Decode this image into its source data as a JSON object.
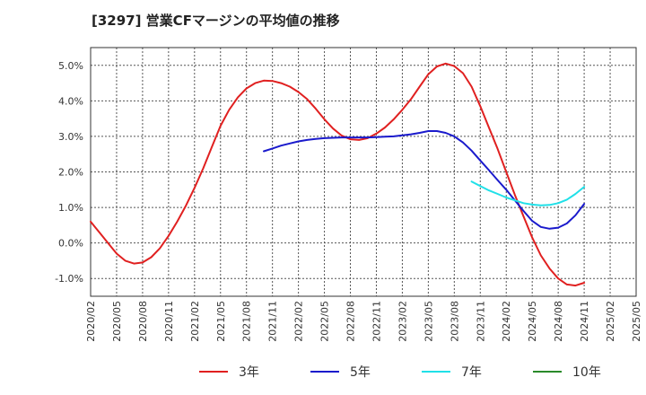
{
  "chart_data": {
    "type": "line",
    "title": "[3297]  営業CFマージンの平均値の推移",
    "xlabel": "",
    "ylabel": "",
    "ylim": [
      -1.5,
      5.5
    ],
    "y_ticks": [
      "5.0%",
      "4.0%",
      "3.0%",
      "2.0%",
      "1.0%",
      "0.0%",
      "-1.0%"
    ],
    "x_ticks": [
      "2020/02",
      "2020/05",
      "2020/08",
      "2020/11",
      "2021/02",
      "2021/05",
      "2021/08",
      "2021/11",
      "2022/02",
      "2022/05",
      "2022/08",
      "2022/11",
      "2023/02",
      "2023/05",
      "2023/08",
      "2023/11",
      "2024/02",
      "2024/05",
      "2024/08",
      "2024/11",
      "2025/02",
      "2025/05"
    ],
    "grid": true,
    "legend_position": "bottom",
    "series": [
      {
        "name": "3年",
        "color": "#e02020",
        "points": [
          [
            "2020/02",
            0.6
          ],
          [
            "2020/03",
            0.3
          ],
          [
            "2020/04",
            0.0
          ],
          [
            "2020/05",
            -0.3
          ],
          [
            "2020/06",
            -0.5
          ],
          [
            "2020/07",
            -0.58
          ],
          [
            "2020/08",
            -0.55
          ],
          [
            "2020/09",
            -0.4
          ],
          [
            "2020/10",
            -0.15
          ],
          [
            "2020/11",
            0.2
          ],
          [
            "2020/12",
            0.6
          ],
          [
            "2021/01",
            1.05
          ],
          [
            "2021/02",
            1.55
          ],
          [
            "2021/03",
            2.1
          ],
          [
            "2021/04",
            2.7
          ],
          [
            "2021/05",
            3.3
          ],
          [
            "2021/06",
            3.75
          ],
          [
            "2021/07",
            4.1
          ],
          [
            "2021/08",
            4.35
          ],
          [
            "2021/09",
            4.5
          ],
          [
            "2021/10",
            4.57
          ],
          [
            "2021/11",
            4.56
          ],
          [
            "2021/12",
            4.5
          ],
          [
            "2022/01",
            4.4
          ],
          [
            "2022/02",
            4.25
          ],
          [
            "2022/03",
            4.05
          ],
          [
            "2022/04",
            3.78
          ],
          [
            "2022/05",
            3.48
          ],
          [
            "2022/06",
            3.22
          ],
          [
            "2022/07",
            3.02
          ],
          [
            "2022/08",
            2.92
          ],
          [
            "2022/09",
            2.9
          ],
          [
            "2022/10",
            2.95
          ],
          [
            "2022/11",
            3.08
          ],
          [
            "2022/12",
            3.25
          ],
          [
            "2023/01",
            3.48
          ],
          [
            "2023/02",
            3.75
          ],
          [
            "2023/03",
            4.05
          ],
          [
            "2023/04",
            4.4
          ],
          [
            "2023/05",
            4.75
          ],
          [
            "2023/06",
            4.97
          ],
          [
            "2023/07",
            5.05
          ],
          [
            "2023/08",
            4.98
          ],
          [
            "2023/09",
            4.78
          ],
          [
            "2023/10",
            4.4
          ],
          [
            "2023/11",
            3.85
          ],
          [
            "2023/12",
            3.25
          ],
          [
            "2024/01",
            2.65
          ],
          [
            "2024/02",
            2.0
          ],
          [
            "2024/03",
            1.35
          ],
          [
            "2024/04",
            0.75
          ],
          [
            "2024/05",
            0.15
          ],
          [
            "2024/06",
            -0.35
          ],
          [
            "2024/07",
            -0.72
          ],
          [
            "2024/08",
            -1.0
          ],
          [
            "2024/09",
            -1.17
          ],
          [
            "2024/10",
            -1.2
          ],
          [
            "2024/11",
            -1.12
          ]
        ]
      },
      {
        "name": "5年",
        "color": "#1a1acc",
        "points": [
          [
            "2021/10",
            2.58
          ],
          [
            "2021/11",
            2.66
          ],
          [
            "2021/12",
            2.74
          ],
          [
            "2022/01",
            2.8
          ],
          [
            "2022/02",
            2.86
          ],
          [
            "2022/03",
            2.9
          ],
          [
            "2022/04",
            2.93
          ],
          [
            "2022/05",
            2.95
          ],
          [
            "2022/06",
            2.96
          ],
          [
            "2022/07",
            2.97
          ],
          [
            "2022/08",
            2.97
          ],
          [
            "2022/09",
            2.97
          ],
          [
            "2022/10",
            2.97
          ],
          [
            "2022/11",
            2.98
          ],
          [
            "2022/12",
            2.99
          ],
          [
            "2023/01",
            3.0
          ],
          [
            "2023/02",
            3.03
          ],
          [
            "2023/03",
            3.06
          ],
          [
            "2023/04",
            3.1
          ],
          [
            "2023/05",
            3.15
          ],
          [
            "2023/06",
            3.15
          ],
          [
            "2023/07",
            3.1
          ],
          [
            "2023/08",
            3.0
          ],
          [
            "2023/09",
            2.83
          ],
          [
            "2023/10",
            2.6
          ],
          [
            "2023/11",
            2.32
          ],
          [
            "2023/12",
            2.05
          ],
          [
            "2024/01",
            1.77
          ],
          [
            "2024/02",
            1.5
          ],
          [
            "2024/03",
            1.2
          ],
          [
            "2024/04",
            0.9
          ],
          [
            "2024/05",
            0.62
          ],
          [
            "2024/06",
            0.45
          ],
          [
            "2024/07",
            0.4
          ],
          [
            "2024/08",
            0.43
          ],
          [
            "2024/09",
            0.55
          ],
          [
            "2024/10",
            0.78
          ],
          [
            "2024/11",
            1.1
          ]
        ]
      },
      {
        "name": "7年",
        "color": "#20e0e8",
        "points": [
          [
            "2023/10",
            1.73
          ],
          [
            "2023/11",
            1.6
          ],
          [
            "2023/12",
            1.48
          ],
          [
            "2024/01",
            1.38
          ],
          [
            "2024/02",
            1.28
          ],
          [
            "2024/03",
            1.2
          ],
          [
            "2024/04",
            1.12
          ],
          [
            "2024/05",
            1.08
          ],
          [
            "2024/06",
            1.06
          ],
          [
            "2024/07",
            1.07
          ],
          [
            "2024/08",
            1.12
          ],
          [
            "2024/09",
            1.22
          ],
          [
            "2024/10",
            1.38
          ],
          [
            "2024/11",
            1.58
          ]
        ]
      },
      {
        "name": "10年",
        "color": "#2a8a2a",
        "points": []
      }
    ]
  }
}
